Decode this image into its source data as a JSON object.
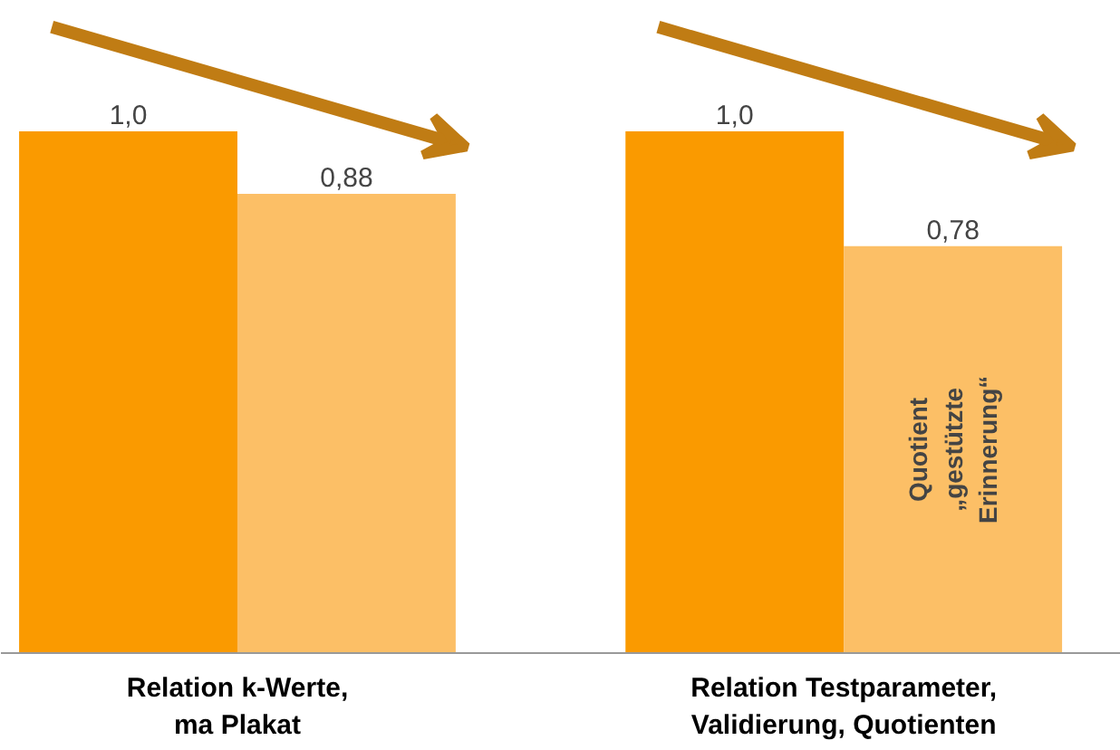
{
  "chart_data": {
    "type": "bar",
    "categories": [
      "Relation k-Werte,\nma Plakat",
      "Relation Testparameter,\nValidierung, Quotienten"
    ],
    "series": [
      {
        "color": "#fa9a00",
        "values": [
          1.0,
          1.0
        ],
        "value_labels": [
          "1,0",
          "1,0"
        ]
      },
      {
        "color": "#fcbf66",
        "values": [
          0.88,
          0.78
        ],
        "value_labels": [
          "0,88",
          "0,78"
        ]
      }
    ],
    "tick_labels": "x",
    "grid": false,
    "annotations": [
      "Quotient\n„gestützte\nErinnerung“"
    ]
  }
}
